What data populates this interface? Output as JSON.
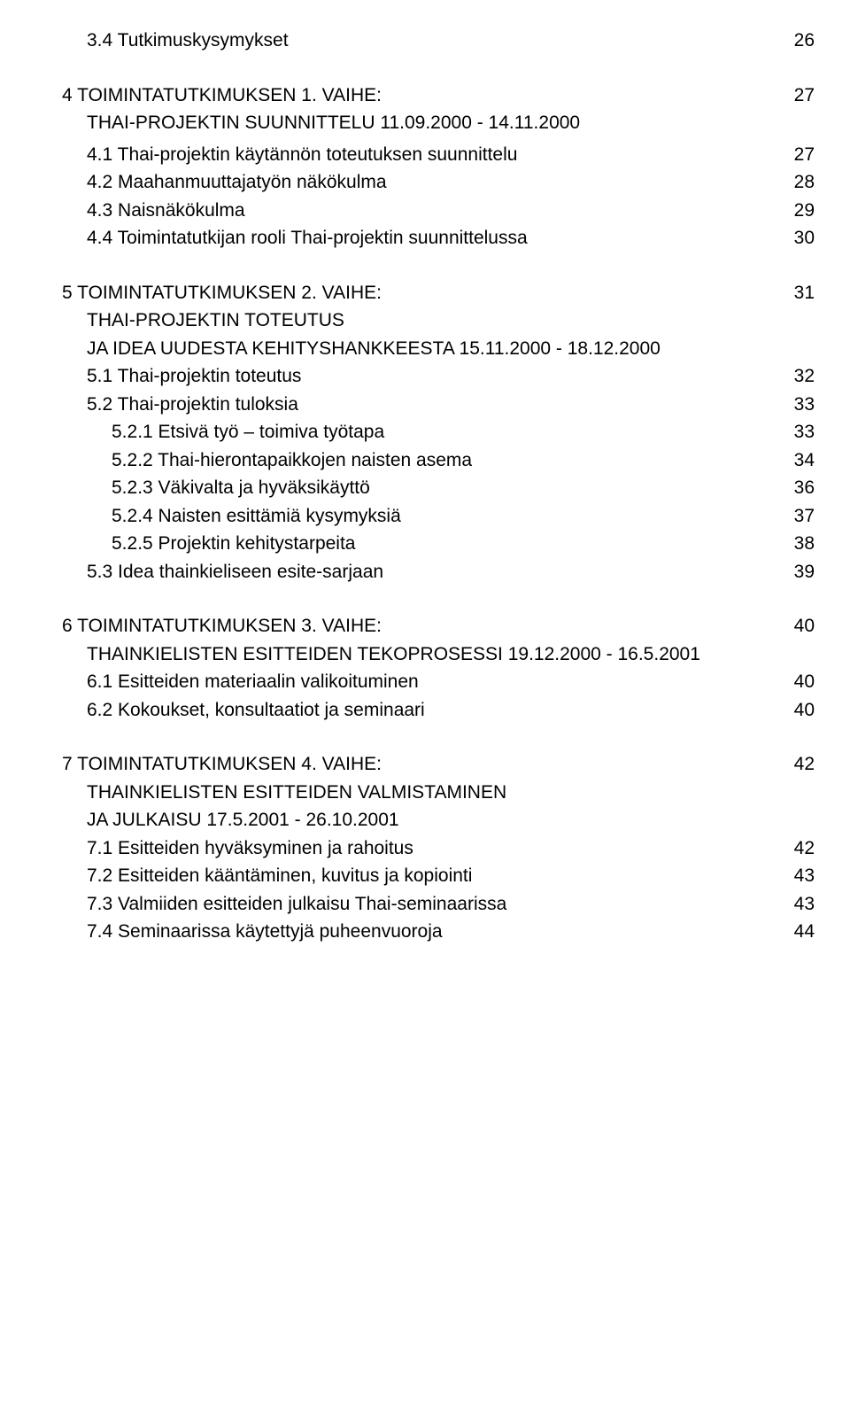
{
  "colors": {
    "text": "#000000",
    "background": "#ffffff"
  },
  "typography": {
    "font_family": "Arial, Helvetica, sans-serif",
    "font_size_pt": 16,
    "line_height": 1.5
  },
  "toc": [
    {
      "indent": 1,
      "label": "3.4  Tutkimuskysymykset",
      "page": "26",
      "gap_after": "group"
    },
    {
      "indent": 0,
      "label": "4   TOIMINTATUTKIMUKSEN 1. VAIHE:",
      "page": "27"
    },
    {
      "indent": 0,
      "sub": true,
      "label": "THAI-PROJEKTIN  SUUNNITTELU  11.09.2000 - 14.11.2000",
      "page": "",
      "gap_after": "small"
    },
    {
      "indent": 1,
      "label": "4.1  Thai-projektin käytännön toteutuksen suunnittelu",
      "page": "27"
    },
    {
      "indent": 1,
      "label": "4.2  Maahanmuuttajatyön näkökulma",
      "page": "28"
    },
    {
      "indent": 1,
      "label": "4.3  Naisnäkökulma",
      "page": "29"
    },
    {
      "indent": 1,
      "label": "4.4  Toimintatutkijan rooli Thai-projektin suunnittelussa",
      "page": "30",
      "gap_after": "group"
    },
    {
      "indent": 0,
      "label": "5   TOIMINTATUTKIMUKSEN 2. VAIHE:",
      "page": "31"
    },
    {
      "indent": 0,
      "sub": true,
      "label": "THAI-PROJEKTIN TOTEUTUS",
      "page": ""
    },
    {
      "indent": 0,
      "sub": true,
      "label": "JA IDEA UUDESTA KEHITYSHANKKEESTA 15.11.2000 - 18.12.2000",
      "page": ""
    },
    {
      "indent": 1,
      "label": "5.1  Thai-projektin toteutus",
      "page": "32"
    },
    {
      "indent": 1,
      "label": "5.2  Thai-projektin tuloksia",
      "page": "33"
    },
    {
      "indent": 2,
      "label": "5.2.1 Etsivä työ – toimiva työtapa",
      "page": "33"
    },
    {
      "indent": 2,
      "label": "5.2.2 Thai-hierontapaikkojen naisten asema",
      "page": "34"
    },
    {
      "indent": 2,
      "label": "5.2.3 Väkivalta ja hyväksikäyttö",
      "page": "36"
    },
    {
      "indent": 2,
      "label": "5.2.4 Naisten esittämiä kysymyksiä",
      "page": "37"
    },
    {
      "indent": 2,
      "label": "5.2.5 Projektin kehitystarpeita",
      "page": "38"
    },
    {
      "indent": 1,
      "label": "5.3  Idea thainkieliseen esite-sarjaan",
      "page": "39",
      "gap_after": "group"
    },
    {
      "indent": 0,
      "label": "6   TOIMINTATUTKIMUKSEN 3. VAIHE:",
      "page": "40"
    },
    {
      "indent": 0,
      "sub": true,
      "label": "THAINKIELISTEN ESITTEIDEN TEKOPROSESSI  19.12.2000 - 16.5.2001",
      "page": ""
    },
    {
      "indent": 1,
      "label": "6.1  Esitteiden materiaalin valikoituminen",
      "page": "40"
    },
    {
      "indent": 1,
      "label": "6.2  Kokoukset, konsultaatiot ja seminaari",
      "page": "40",
      "gap_after": "group"
    },
    {
      "indent": 0,
      "label": "7   TOIMINTATUTKIMUKSEN 4. VAIHE:",
      "page": "42"
    },
    {
      "indent": 0,
      "sub": true,
      "label": "THAINKIELISTEN ESITTEIDEN VALMISTAMINEN",
      "page": ""
    },
    {
      "indent": 0,
      "sub": true,
      "label": "JA JULKAISU  17.5.2001 - 26.10.2001",
      "page": ""
    },
    {
      "indent": 1,
      "label": "7.1  Esitteiden hyväksyminen ja rahoitus",
      "page": "42"
    },
    {
      "indent": 1,
      "label": "7.2  Esitteiden kääntäminen, kuvitus ja kopiointi",
      "page": "43"
    },
    {
      "indent": 1,
      "label": "7.3  Valmiiden esitteiden julkaisu Thai-seminaarissa",
      "page": "43"
    },
    {
      "indent": 1,
      "label": "7.4  Seminaarissa käytettyjä puheenvuoroja",
      "page": "44"
    }
  ]
}
